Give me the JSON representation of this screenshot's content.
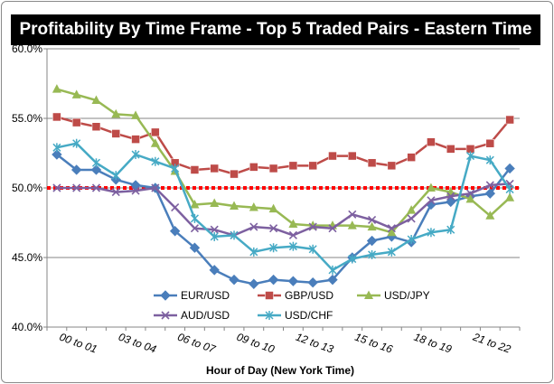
{
  "chart_data": {
    "type": "line",
    "title": "Profitability By Time Frame - Top 5 Traded Pairs - Eastern Time",
    "xlabel": "Hour of Day (New York Time)",
    "ylabel": "",
    "ylim": [
      40.0,
      60.0
    ],
    "yticks": [
      "40.0%",
      "45.0%",
      "50.0%",
      "55.0%",
      "60.0%"
    ],
    "ytick_values": [
      40,
      45,
      50,
      55,
      60
    ],
    "x": [
      0,
      1,
      2,
      3,
      4,
      5,
      6,
      7,
      8,
      9,
      10,
      11,
      12,
      13,
      14,
      15,
      16,
      17,
      18,
      19,
      20,
      21,
      22,
      23
    ],
    "xticks": [
      {
        "index": 0,
        "label": "00 to 01"
      },
      {
        "index": 3,
        "label": "03 to 04"
      },
      {
        "index": 6,
        "label": "06 to 07"
      },
      {
        "index": 9,
        "label": "09 to 10"
      },
      {
        "index": 12,
        "label": "12 to 13"
      },
      {
        "index": 15,
        "label": "15 to 16"
      },
      {
        "index": 18,
        "label": "18 to 19"
      },
      {
        "index": 21,
        "label": "21 to 22"
      }
    ],
    "reference_line": {
      "value": 50.0,
      "color": "#ff0000",
      "style": "dotted"
    },
    "legend_position": "bottom-center",
    "series": [
      {
        "name": "EUR/USD",
        "color": "#4a7ebb",
        "marker": "diamond",
        "values": [
          52.4,
          51.3,
          51.3,
          50.6,
          50.2,
          50.0,
          46.9,
          45.7,
          44.1,
          43.4,
          43.1,
          43.4,
          43.3,
          43.2,
          43.4,
          45.0,
          46.2,
          46.5,
          46.1,
          48.8,
          49.0,
          49.4,
          49.6,
          51.4
        ]
      },
      {
        "name": "GBP/USD",
        "color": "#be4b48",
        "marker": "square",
        "values": [
          55.1,
          54.7,
          54.4,
          53.9,
          53.5,
          54.0,
          51.8,
          51.3,
          51.4,
          51.0,
          51.5,
          51.4,
          51.6,
          51.6,
          52.3,
          52.3,
          51.8,
          51.6,
          52.2,
          53.3,
          52.8,
          52.8,
          53.2,
          54.9
        ]
      },
      {
        "name": "USD/JPY",
        "color": "#98b954",
        "marker": "triangle",
        "values": [
          57.1,
          56.7,
          56.3,
          55.3,
          55.2,
          53.2,
          51.2,
          48.8,
          48.9,
          48.7,
          48.6,
          48.5,
          47.4,
          47.3,
          47.3,
          47.3,
          47.2,
          46.8,
          48.4,
          50.0,
          49.7,
          49.2,
          48.0,
          49.3
        ]
      },
      {
        "name": "AUD/USD",
        "color": "#7d60a0",
        "marker": "x",
        "values": [
          50.0,
          50.0,
          50.0,
          49.7,
          49.8,
          50.0,
          48.6,
          47.1,
          47.0,
          46.6,
          47.2,
          47.1,
          46.6,
          47.2,
          47.1,
          48.1,
          47.7,
          47.1,
          47.8,
          49.1,
          49.4,
          49.6,
          50.2,
          50.3
        ]
      },
      {
        "name": "USD/CHF",
        "color": "#46aac5",
        "marker": "asterisk",
        "values": [
          52.9,
          53.2,
          51.8,
          50.9,
          52.4,
          51.9,
          51.4,
          47.8,
          46.5,
          46.6,
          45.4,
          45.7,
          45.8,
          45.6,
          44.1,
          44.9,
          45.2,
          45.4,
          46.3,
          46.8,
          47.0,
          52.3,
          52.0,
          49.9
        ]
      }
    ]
  }
}
